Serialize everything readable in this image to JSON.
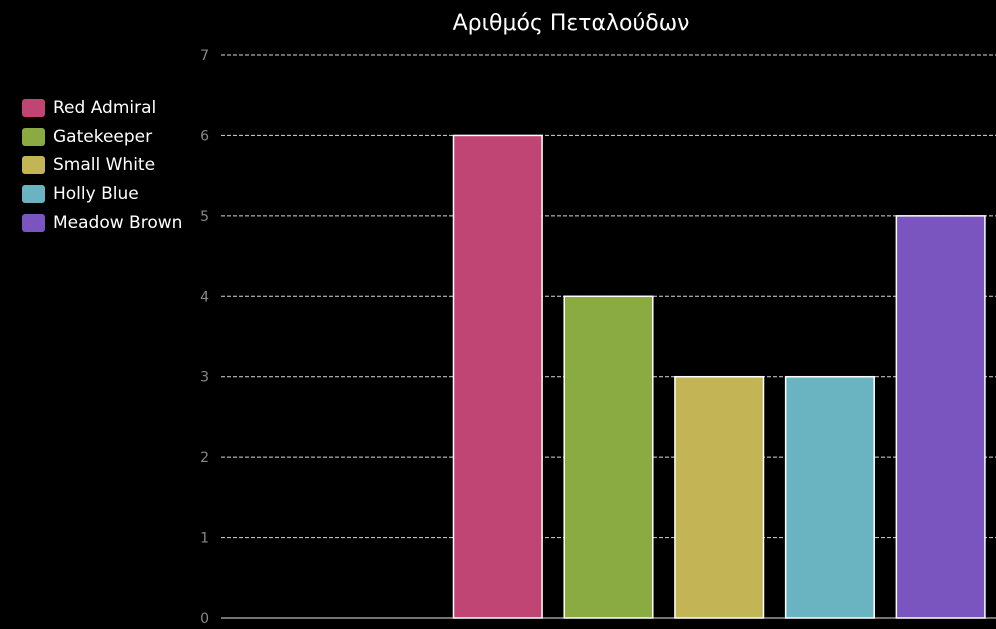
{
  "chart_data": {
    "type": "bar",
    "title": "Αριθμός Πεταλούδων",
    "xlabel": "",
    "ylabel": "",
    "ylim": [
      0,
      7
    ],
    "yticks": [
      0,
      1,
      2,
      3,
      4,
      5,
      6,
      7
    ],
    "grid": true,
    "legend_position": "left",
    "categories": [
      "",
      "",
      "Red Admiral",
      "Gatekeeper",
      "Small White",
      "Holly Blue",
      "Meadow Brown"
    ],
    "series": [
      {
        "name": "Red Admiral",
        "value": 6,
        "color": "#c04574"
      },
      {
        "name": "Gatekeeper",
        "value": 4,
        "color": "#8aaa42"
      },
      {
        "name": "Small White",
        "value": 3,
        "color": "#c3b555"
      },
      {
        "name": "Holly Blue",
        "value": 3,
        "color": "#6ab4c2"
      },
      {
        "name": "Meadow Brown",
        "value": 5,
        "color": "#7a55c0"
      }
    ]
  },
  "colors": {
    "background": "#000000",
    "grid": "#ffffff",
    "tick_text": "#888888",
    "bar_border": "#ffffff"
  }
}
